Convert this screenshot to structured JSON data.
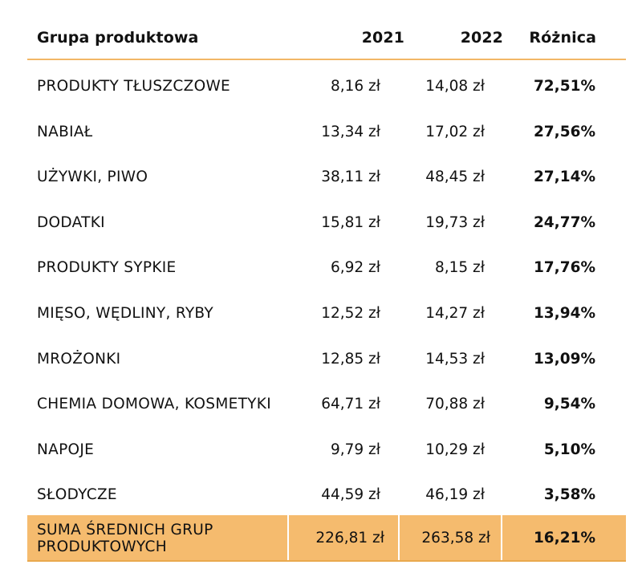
{
  "table": {
    "headers": [
      "Grupa produktowa",
      "2021",
      "2022",
      "Różnica"
    ],
    "rows": [
      {
        "group": "PRODUKTY TŁUSZCZOWE",
        "y2021": "8,16 zł",
        "y2022": "14,08 zł",
        "diff": "72,51%"
      },
      {
        "group": "NABIAŁ",
        "y2021": "13,34 zł",
        "y2022": "17,02 zł",
        "diff": "27,56%"
      },
      {
        "group": "UŻYWKI, PIWO",
        "y2021": "38,11 zł",
        "y2022": "48,45 zł",
        "diff": "27,14%"
      },
      {
        "group": "DODATKI",
        "y2021": "15,81 zł",
        "y2022": "19,73 zł",
        "diff": "24,77%"
      },
      {
        "group": "PRODUKTY SYPKIE",
        "y2021": "6,92 zł",
        "y2022": "8,15 zł",
        "diff": "17,76%"
      },
      {
        "group": "MIĘSO, WĘDLINY, RYBY",
        "y2021": "12,52 zł",
        "y2022": "14,27 zł",
        "diff": "13,94%"
      },
      {
        "group": "MROŻONKI",
        "y2021": "12,85 zł",
        "y2022": "14,53 zł",
        "diff": "13,09%"
      },
      {
        "group": "CHEMIA DOMOWA, KOSMETYKI",
        "y2021": "64,71 zł",
        "y2022": "70,88 zł",
        "diff": "9,54%"
      },
      {
        "group": "NAPOJE",
        "y2021": "9,79 zł",
        "y2022": "10,29 zł",
        "diff": "5,10%"
      },
      {
        "group": "SŁODYCZE",
        "y2021": "44,59 zł",
        "y2022": "46,19 zł",
        "diff": "3,58%"
      }
    ],
    "total": {
      "group_line1": "SUMA ŚREDNICH GRUP",
      "group_line2": "PRODUKTOWYCH",
      "y2021": "226,81 zł",
      "y2022": "263,58 zł",
      "diff": "16,21%"
    }
  },
  "colors": {
    "accent_line": "#f2b766",
    "total_background": "#f5bb6e"
  }
}
